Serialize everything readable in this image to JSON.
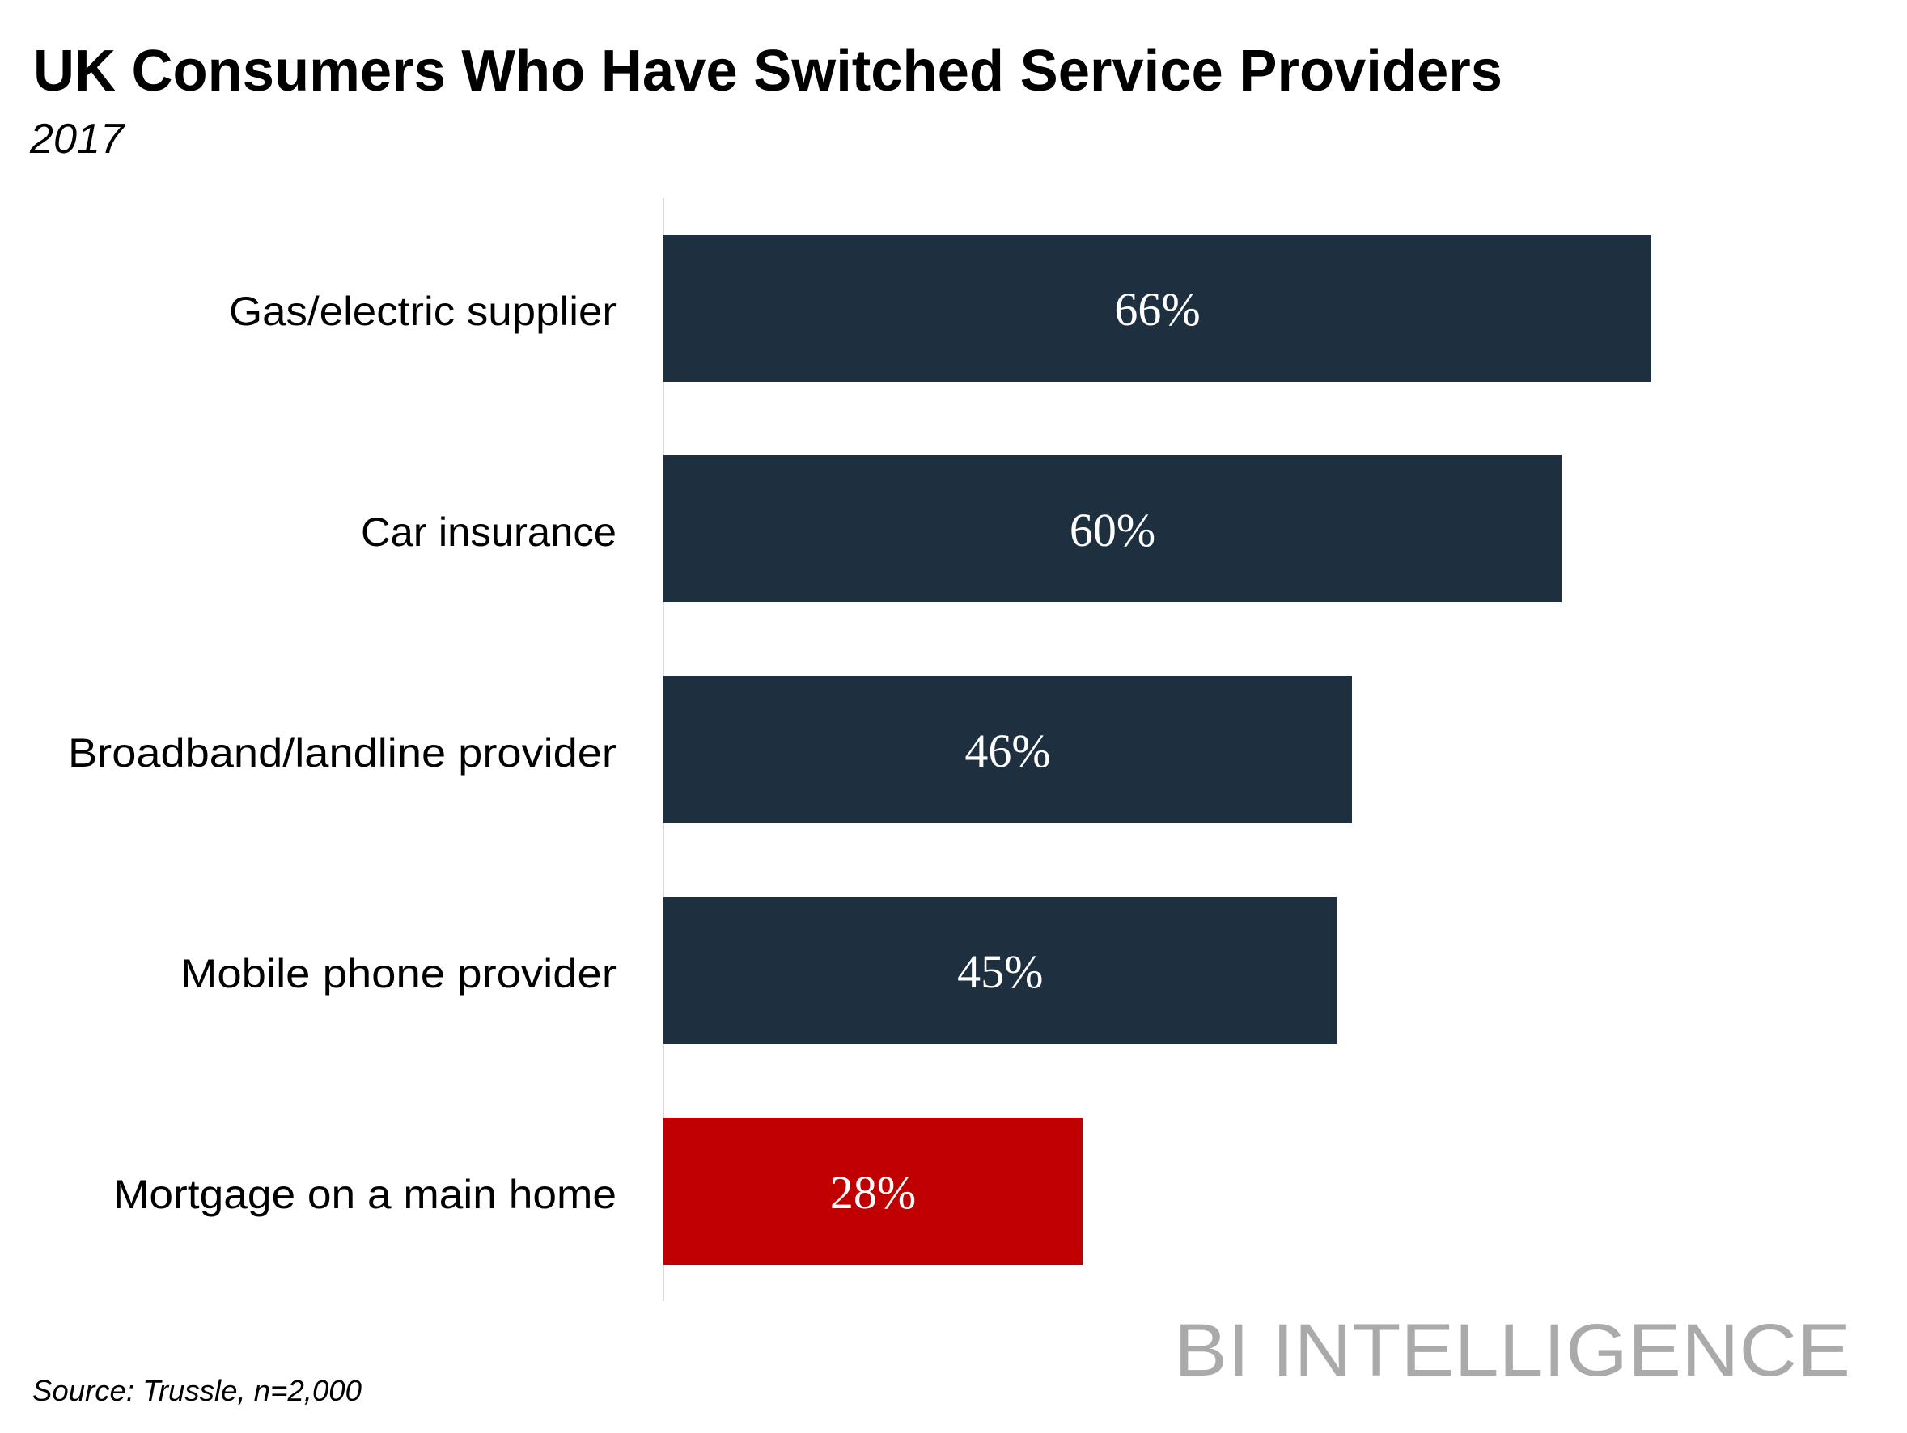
{
  "chart_data": {
    "type": "bar",
    "orientation": "horizontal",
    "title": "UK Consumers Who Have Switched Service Providers",
    "subtitle": "2017",
    "categories": [
      "Gas/electric supplier",
      "Car insurance",
      "Broadband/landline provider",
      "Mobile phone provider",
      "Mortgage on a main home"
    ],
    "values": [
      66,
      60,
      46,
      45,
      28
    ],
    "data_labels": [
      "66%",
      "60%",
      "46%",
      "45%",
      "28%"
    ],
    "unit": "%",
    "xlabel": "",
    "ylabel": "",
    "grid": false,
    "legend": "none",
    "colors": [
      "#1e2f40",
      "#1e2f40",
      "#1e2f40",
      "#1e2f40",
      "#c00000"
    ],
    "axis_color": "#d9d9d9"
  },
  "footer": {
    "source": "Source: Trussle, n=2,000",
    "logo_text": "BI INTELLIGENCE",
    "logo_color": "#aaaaaa"
  }
}
